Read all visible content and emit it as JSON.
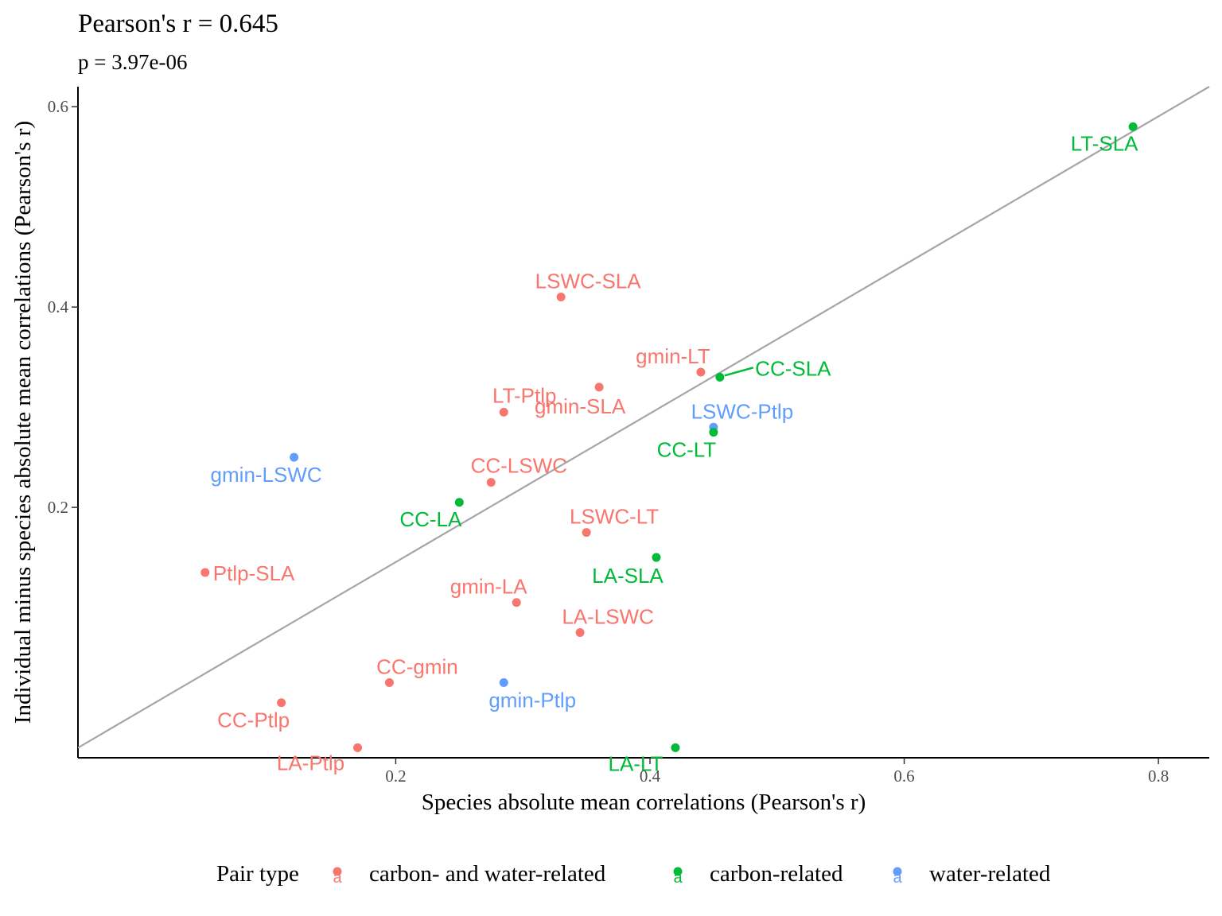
{
  "chart_data": {
    "type": "scatter",
    "title": "Pearson's r = 0.645",
    "subtitle": "p = 3.97e-06",
    "xlabel": "Species absolute mean correlations (Pearson's r)",
    "ylabel": "Individual minus species absolute mean correlations (Pearson's r)",
    "x_ticks": [
      0.2,
      0.4,
      0.6,
      0.8
    ],
    "y_ticks": [
      0.2,
      0.4,
      0.6
    ],
    "xlim": [
      -0.05,
      0.84
    ],
    "ylim": [
      -0.05,
      0.62
    ],
    "grid": false,
    "legend": {
      "title": "Pair type",
      "position": "bottom",
      "key_glyph": "a",
      "entries": [
        {
          "name": "carbon- and water-related",
          "color": "#F8766D"
        },
        {
          "name": "carbon-related",
          "color": "#00BA38"
        },
        {
          "name": "water-related",
          "color": "#619CFF"
        }
      ]
    },
    "fit_line": {
      "color": "#A6A6A6",
      "points": [
        [
          -0.05,
          -0.04
        ],
        [
          0.84,
          0.62
        ]
      ]
    },
    "points": [
      {
        "label": "LT-SLA",
        "group": "carbon-related",
        "x": 0.78,
        "y": 0.58
      },
      {
        "label": "LSWC-SLA",
        "group": "carbon- and water-related",
        "x": 0.33,
        "y": 0.41
      },
      {
        "label": "gmin-LT",
        "group": "carbon- and water-related",
        "x": 0.44,
        "y": 0.335
      },
      {
        "label": "CC-SLA",
        "group": "carbon-related",
        "x": 0.455,
        "y": 0.33
      },
      {
        "label": "gmin-SLA",
        "group": "carbon- and water-related",
        "x": 0.36,
        "y": 0.32
      },
      {
        "label": "LT-Ptlp",
        "group": "carbon- and water-related",
        "x": 0.285,
        "y": 0.295
      },
      {
        "label": "LSWC-Ptlp",
        "group": "water-related",
        "x": 0.45,
        "y": 0.28
      },
      {
        "label": "CC-LT",
        "group": "carbon-related",
        "x": 0.45,
        "y": 0.275
      },
      {
        "label": "gmin-LSWC",
        "group": "water-related",
        "x": 0.12,
        "y": 0.25
      },
      {
        "label": "CC-LSWC",
        "group": "carbon- and water-related",
        "x": 0.275,
        "y": 0.225
      },
      {
        "label": "CC-LA",
        "group": "carbon-related",
        "x": 0.25,
        "y": 0.205
      },
      {
        "label": "LSWC-LT",
        "group": "carbon- and water-related",
        "x": 0.35,
        "y": 0.175
      },
      {
        "label": "LA-SLA",
        "group": "carbon-related",
        "x": 0.405,
        "y": 0.15
      },
      {
        "label": "Ptlp-SLA",
        "group": "carbon- and water-related",
        "x": 0.05,
        "y": 0.135
      },
      {
        "label": "gmin-LA",
        "group": "carbon- and water-related",
        "x": 0.295,
        "y": 0.105
      },
      {
        "label": "LA-LSWC",
        "group": "carbon- and water-related",
        "x": 0.345,
        "y": 0.075
      },
      {
        "label": "CC-gmin",
        "group": "carbon- and water-related",
        "x": 0.195,
        "y": 0.025
      },
      {
        "label": "gmin-Ptlp",
        "group": "water-related",
        "x": 0.285,
        "y": 0.025
      },
      {
        "label": "CC-Ptlp",
        "group": "carbon- and water-related",
        "x": 0.11,
        "y": 0.005
      },
      {
        "label": "LA-Ptlp",
        "group": "carbon- and water-related",
        "x": 0.17,
        "y": -0.04
      },
      {
        "label": "LA-LT",
        "group": "carbon-related",
        "x": 0.42,
        "y": -0.04
      }
    ]
  }
}
